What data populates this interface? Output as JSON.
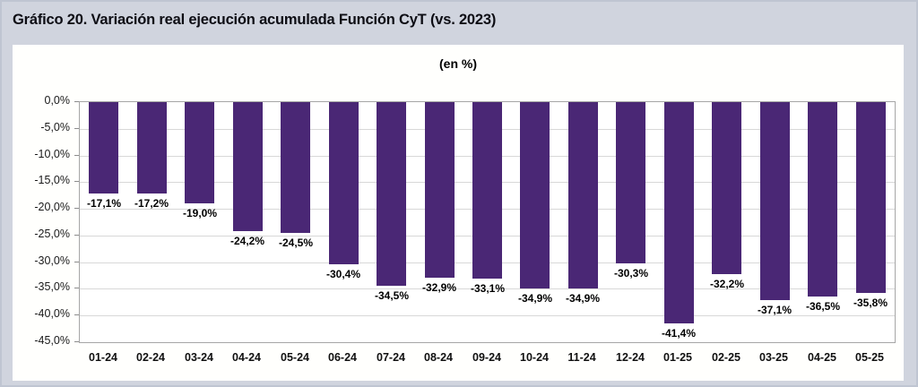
{
  "page": {
    "title": "Gráfico 20. Variación real ejecución acumulada Función CyT (vs. 2023)"
  },
  "chart_data": {
    "type": "bar",
    "title": "Gráfico 20. Variación real ejecución acumulada Función CyT (vs. 2023)",
    "subtitle": "(en %)",
    "categories": [
      "01-24",
      "02-24",
      "03-24",
      "04-24",
      "05-24",
      "06-24",
      "07-24",
      "08-24",
      "09-24",
      "10-24",
      "11-24",
      "12-24",
      "01-25",
      "02-25",
      "03-25",
      "04-25",
      "05-25"
    ],
    "values": [
      -17.1,
      -17.2,
      -19.0,
      -24.2,
      -24.5,
      -30.4,
      -34.5,
      -32.9,
      -33.1,
      -34.9,
      -34.9,
      -30.3,
      -41.4,
      -32.2,
      -37.1,
      -36.5,
      -35.8
    ],
    "value_labels": [
      "-17,1%",
      "-17,2%",
      "-19,0%",
      "-24,2%",
      "-24,5%",
      "-30,4%",
      "-34,5%",
      "-32,9%",
      "-33,1%",
      "-34,9%",
      "-34,9%",
      "-30,3%",
      "-41,4%",
      "-32,2%",
      "-37,1%",
      "-36,5%",
      "-35,8%"
    ],
    "y_tick_labels": [
      "0,0%",
      "-5,0%",
      "-10,0%",
      "-15,0%",
      "-20,0%",
      "-25,0%",
      "-30,0%",
      "-35,0%",
      "-40,0%",
      "-45,0%"
    ],
    "ylim": [
      -45,
      0
    ],
    "grid": true,
    "legend": "none",
    "xlabel": "",
    "ylabel": "",
    "colors": {
      "bar": "#4A2775",
      "page_background": "#D0D4DE",
      "panel_background": "#FFFFFE",
      "gridline": "#D8D8D8",
      "plot_border": "#A6A6A6",
      "text": "#000000"
    }
  }
}
